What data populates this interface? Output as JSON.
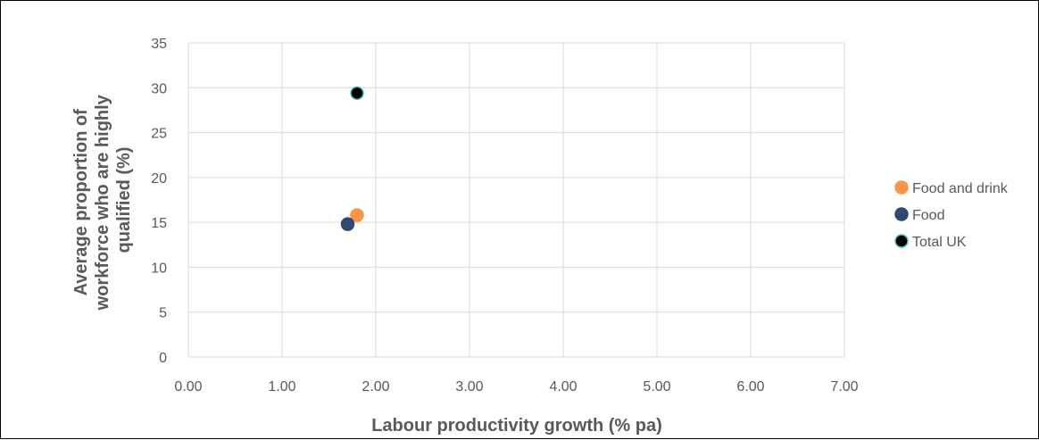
{
  "chart_data": {
    "type": "scatter",
    "xlabel": "Labour productivity growth (% pa)",
    "ylabel_lines": [
      "Average proportion of",
      "workforce who are highly",
      "qualified (%)"
    ],
    "xlim": [
      0,
      7
    ],
    "ylim": [
      0,
      35
    ],
    "x_ticks": [
      "0.00",
      "1.00",
      "2.00",
      "3.00",
      "4.00",
      "5.00",
      "6.00",
      "7.00"
    ],
    "y_ticks": [
      "0",
      "5",
      "10",
      "15",
      "20",
      "25",
      "30",
      "35"
    ],
    "grid": true,
    "legend_position": "right",
    "series": [
      {
        "name": "Food and drink",
        "color": "#F79646",
        "edge": "#F79646",
        "points": [
          {
            "x": 1.8,
            "y": 15.8
          }
        ]
      },
      {
        "name": "Food",
        "color": "#2E4A6E",
        "edge": "#2E4A6E",
        "points": [
          {
            "x": 1.7,
            "y": 14.8
          }
        ]
      },
      {
        "name": "Total UK",
        "color": "#000000",
        "edge": "#4BC4C4",
        "points": [
          {
            "x": 1.8,
            "y": 29.4
          }
        ]
      }
    ]
  }
}
